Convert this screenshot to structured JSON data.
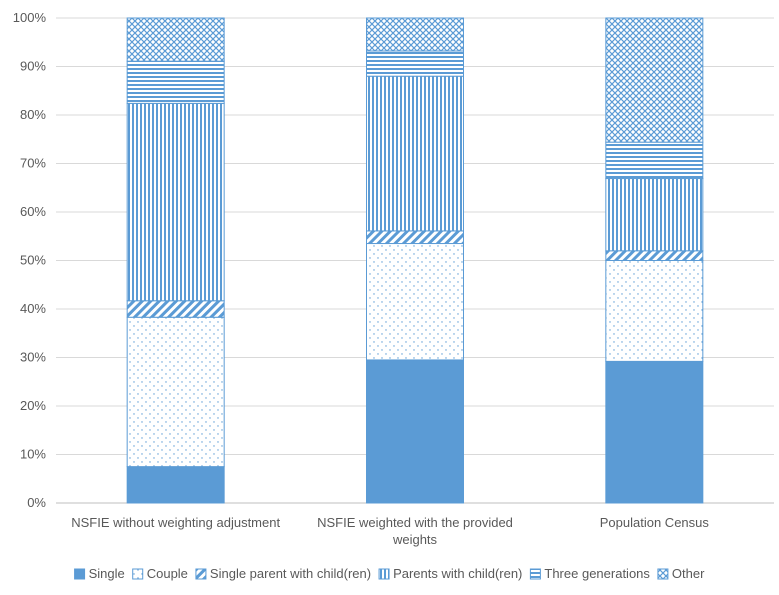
{
  "chart_data": {
    "type": "bar",
    "stacked": true,
    "percent": true,
    "categories": [
      [
        "NSFIE without weighting adjustment"
      ],
      [
        "NSFIE weighted with the provided",
        "weights"
      ],
      [
        "Population Census"
      ]
    ],
    "series": [
      {
        "name": "Single",
        "values": [
          7.5,
          29.5,
          29.2
        ],
        "color": "#5B9BD5",
        "pattern": "solid",
        "icon": "solid-square-icon"
      },
      {
        "name": "Couple",
        "values": [
          30.8,
          24.0,
          20.8
        ],
        "color": "#5B9BD5",
        "pattern": "dots",
        "icon": "dotted-square-icon"
      },
      {
        "name": "Single parent with child(ren)",
        "values": [
          3.4,
          2.6,
          2.0
        ],
        "color": "#5B9BD5",
        "pattern": "diagonal",
        "icon": "diagonal-square-icon"
      },
      {
        "name": "Parents with child(ren)",
        "values": [
          40.7,
          31.9,
          14.9
        ],
        "color": "#5B9BD5",
        "pattern": "vertical",
        "icon": "vertical-lines-square-icon"
      },
      {
        "name": "Three generations",
        "values": [
          8.7,
          5.2,
          7.5
        ],
        "color": "#5B9BD5",
        "pattern": "horizontal",
        "icon": "horizontal-lines-square-icon"
      },
      {
        "name": "Other",
        "values": [
          8.9,
          6.8,
          25.6
        ],
        "color": "#5B9BD5",
        "pattern": "crosshatch",
        "icon": "crosshatch-square-icon"
      }
    ],
    "y_ticks": [
      "0%",
      "10%",
      "20%",
      "30%",
      "40%",
      "50%",
      "60%",
      "70%",
      "80%",
      "90%",
      "100%"
    ],
    "ylim": [
      0,
      100
    ],
    "grid": true,
    "legend_position": "bottom",
    "title": "",
    "xlabel": "",
    "ylabel": "",
    "colors": {
      "accent": "#5B9BD5",
      "grid": "#D9D9D9",
      "text": "#595959"
    }
  }
}
